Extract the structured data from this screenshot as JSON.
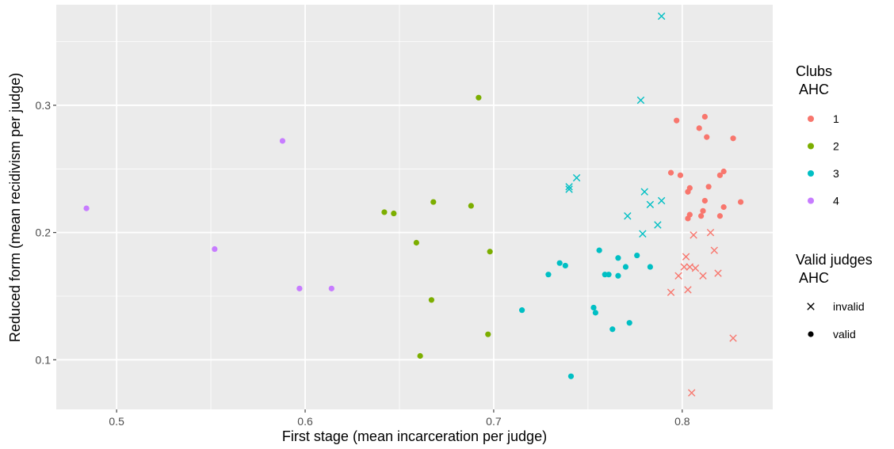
{
  "chart_data": {
    "type": "scatter",
    "xlabel": "First stage (mean incarceration per judge)",
    "ylabel": "Reduced form (mean recidivism per judge)",
    "xlim": [
      0.468,
      0.848
    ],
    "ylim": [
      0.061,
      0.379
    ],
    "x_ticks": [
      {
        "value": 0.5,
        "label": "0.5"
      },
      {
        "value": 0.6,
        "label": "0.6"
      },
      {
        "value": 0.7,
        "label": "0.7"
      },
      {
        "value": 0.8,
        "label": "0.8"
      }
    ],
    "y_ticks": [
      {
        "value": 0.1,
        "label": "0.1"
      },
      {
        "value": 0.2,
        "label": "0.2"
      },
      {
        "value": 0.3,
        "label": "0.3"
      }
    ],
    "grid": true,
    "legend_placement": "right",
    "legends": [
      {
        "title_lines": [
          "Clubs",
          "AHC"
        ],
        "kind": "color",
        "items": [
          {
            "label": "1",
            "color": "#F8766D"
          },
          {
            "label": "2",
            "color": "#7CAE00"
          },
          {
            "label": "3",
            "color": "#00BFC4"
          },
          {
            "label": "4",
            "color": "#C77CFF"
          }
        ]
      },
      {
        "title_lines": [
          "Valid judges",
          "AHC"
        ],
        "kind": "shape",
        "items": [
          {
            "label": "invalid",
            "shape": "cross"
          },
          {
            "label": "valid",
            "shape": "circle"
          }
        ]
      }
    ],
    "series": [
      {
        "club": "1",
        "color": "#F8766D",
        "valid": [
          [
            0.797,
            0.288
          ],
          [
            0.812,
            0.291
          ],
          [
            0.809,
            0.282
          ],
          [
            0.813,
            0.275
          ],
          [
            0.827,
            0.274
          ],
          [
            0.794,
            0.247
          ],
          [
            0.799,
            0.245
          ],
          [
            0.822,
            0.248
          ],
          [
            0.82,
            0.245
          ],
          [
            0.814,
            0.236
          ],
          [
            0.804,
            0.235
          ],
          [
            0.803,
            0.232
          ],
          [
            0.811,
            0.217
          ],
          [
            0.812,
            0.225
          ],
          [
            0.831,
            0.224
          ],
          [
            0.822,
            0.22
          ],
          [
            0.81,
            0.213
          ],
          [
            0.804,
            0.214
          ],
          [
            0.803,
            0.211
          ],
          [
            0.82,
            0.213
          ]
        ],
        "invalid": [
          [
            0.806,
            0.198
          ],
          [
            0.815,
            0.2
          ],
          [
            0.817,
            0.186
          ],
          [
            0.802,
            0.181
          ],
          [
            0.801,
            0.173
          ],
          [
            0.804,
            0.173
          ],
          [
            0.807,
            0.172
          ],
          [
            0.798,
            0.166
          ],
          [
            0.811,
            0.166
          ],
          [
            0.819,
            0.168
          ],
          [
            0.803,
            0.155
          ],
          [
            0.794,
            0.153
          ],
          [
            0.827,
            0.117
          ],
          [
            0.805,
            0.074
          ]
        ]
      },
      {
        "club": "2",
        "color": "#7CAE00",
        "valid": [
          [
            0.692,
            0.306
          ],
          [
            0.668,
            0.224
          ],
          [
            0.688,
            0.221
          ],
          [
            0.642,
            0.216
          ],
          [
            0.647,
            0.215
          ],
          [
            0.659,
            0.192
          ],
          [
            0.698,
            0.185
          ],
          [
            0.667,
            0.147
          ],
          [
            0.697,
            0.12
          ],
          [
            0.661,
            0.103
          ]
        ],
        "invalid": []
      },
      {
        "club": "3",
        "color": "#00BFC4",
        "valid": [
          [
            0.756,
            0.186
          ],
          [
            0.776,
            0.182
          ],
          [
            0.766,
            0.18
          ],
          [
            0.735,
            0.176
          ],
          [
            0.738,
            0.174
          ],
          [
            0.77,
            0.173
          ],
          [
            0.783,
            0.173
          ],
          [
            0.759,
            0.167
          ],
          [
            0.761,
            0.167
          ],
          [
            0.729,
            0.167
          ],
          [
            0.766,
            0.166
          ],
          [
            0.715,
            0.139
          ],
          [
            0.753,
            0.141
          ],
          [
            0.754,
            0.137
          ],
          [
            0.772,
            0.129
          ],
          [
            0.763,
            0.124
          ],
          [
            0.741,
            0.087
          ]
        ],
        "invalid": [
          [
            0.789,
            0.37
          ],
          [
            0.778,
            0.304
          ],
          [
            0.744,
            0.243
          ],
          [
            0.74,
            0.236
          ],
          [
            0.74,
            0.234
          ],
          [
            0.78,
            0.232
          ],
          [
            0.789,
            0.225
          ],
          [
            0.783,
            0.222
          ],
          [
            0.771,
            0.213
          ],
          [
            0.787,
            0.206
          ],
          [
            0.779,
            0.199
          ]
        ]
      },
      {
        "club": "4",
        "color": "#C77CFF",
        "valid": [
          [
            0.588,
            0.272
          ],
          [
            0.484,
            0.219
          ],
          [
            0.552,
            0.187
          ],
          [
            0.597,
            0.156
          ],
          [
            0.614,
            0.156
          ]
        ],
        "invalid": []
      }
    ]
  }
}
